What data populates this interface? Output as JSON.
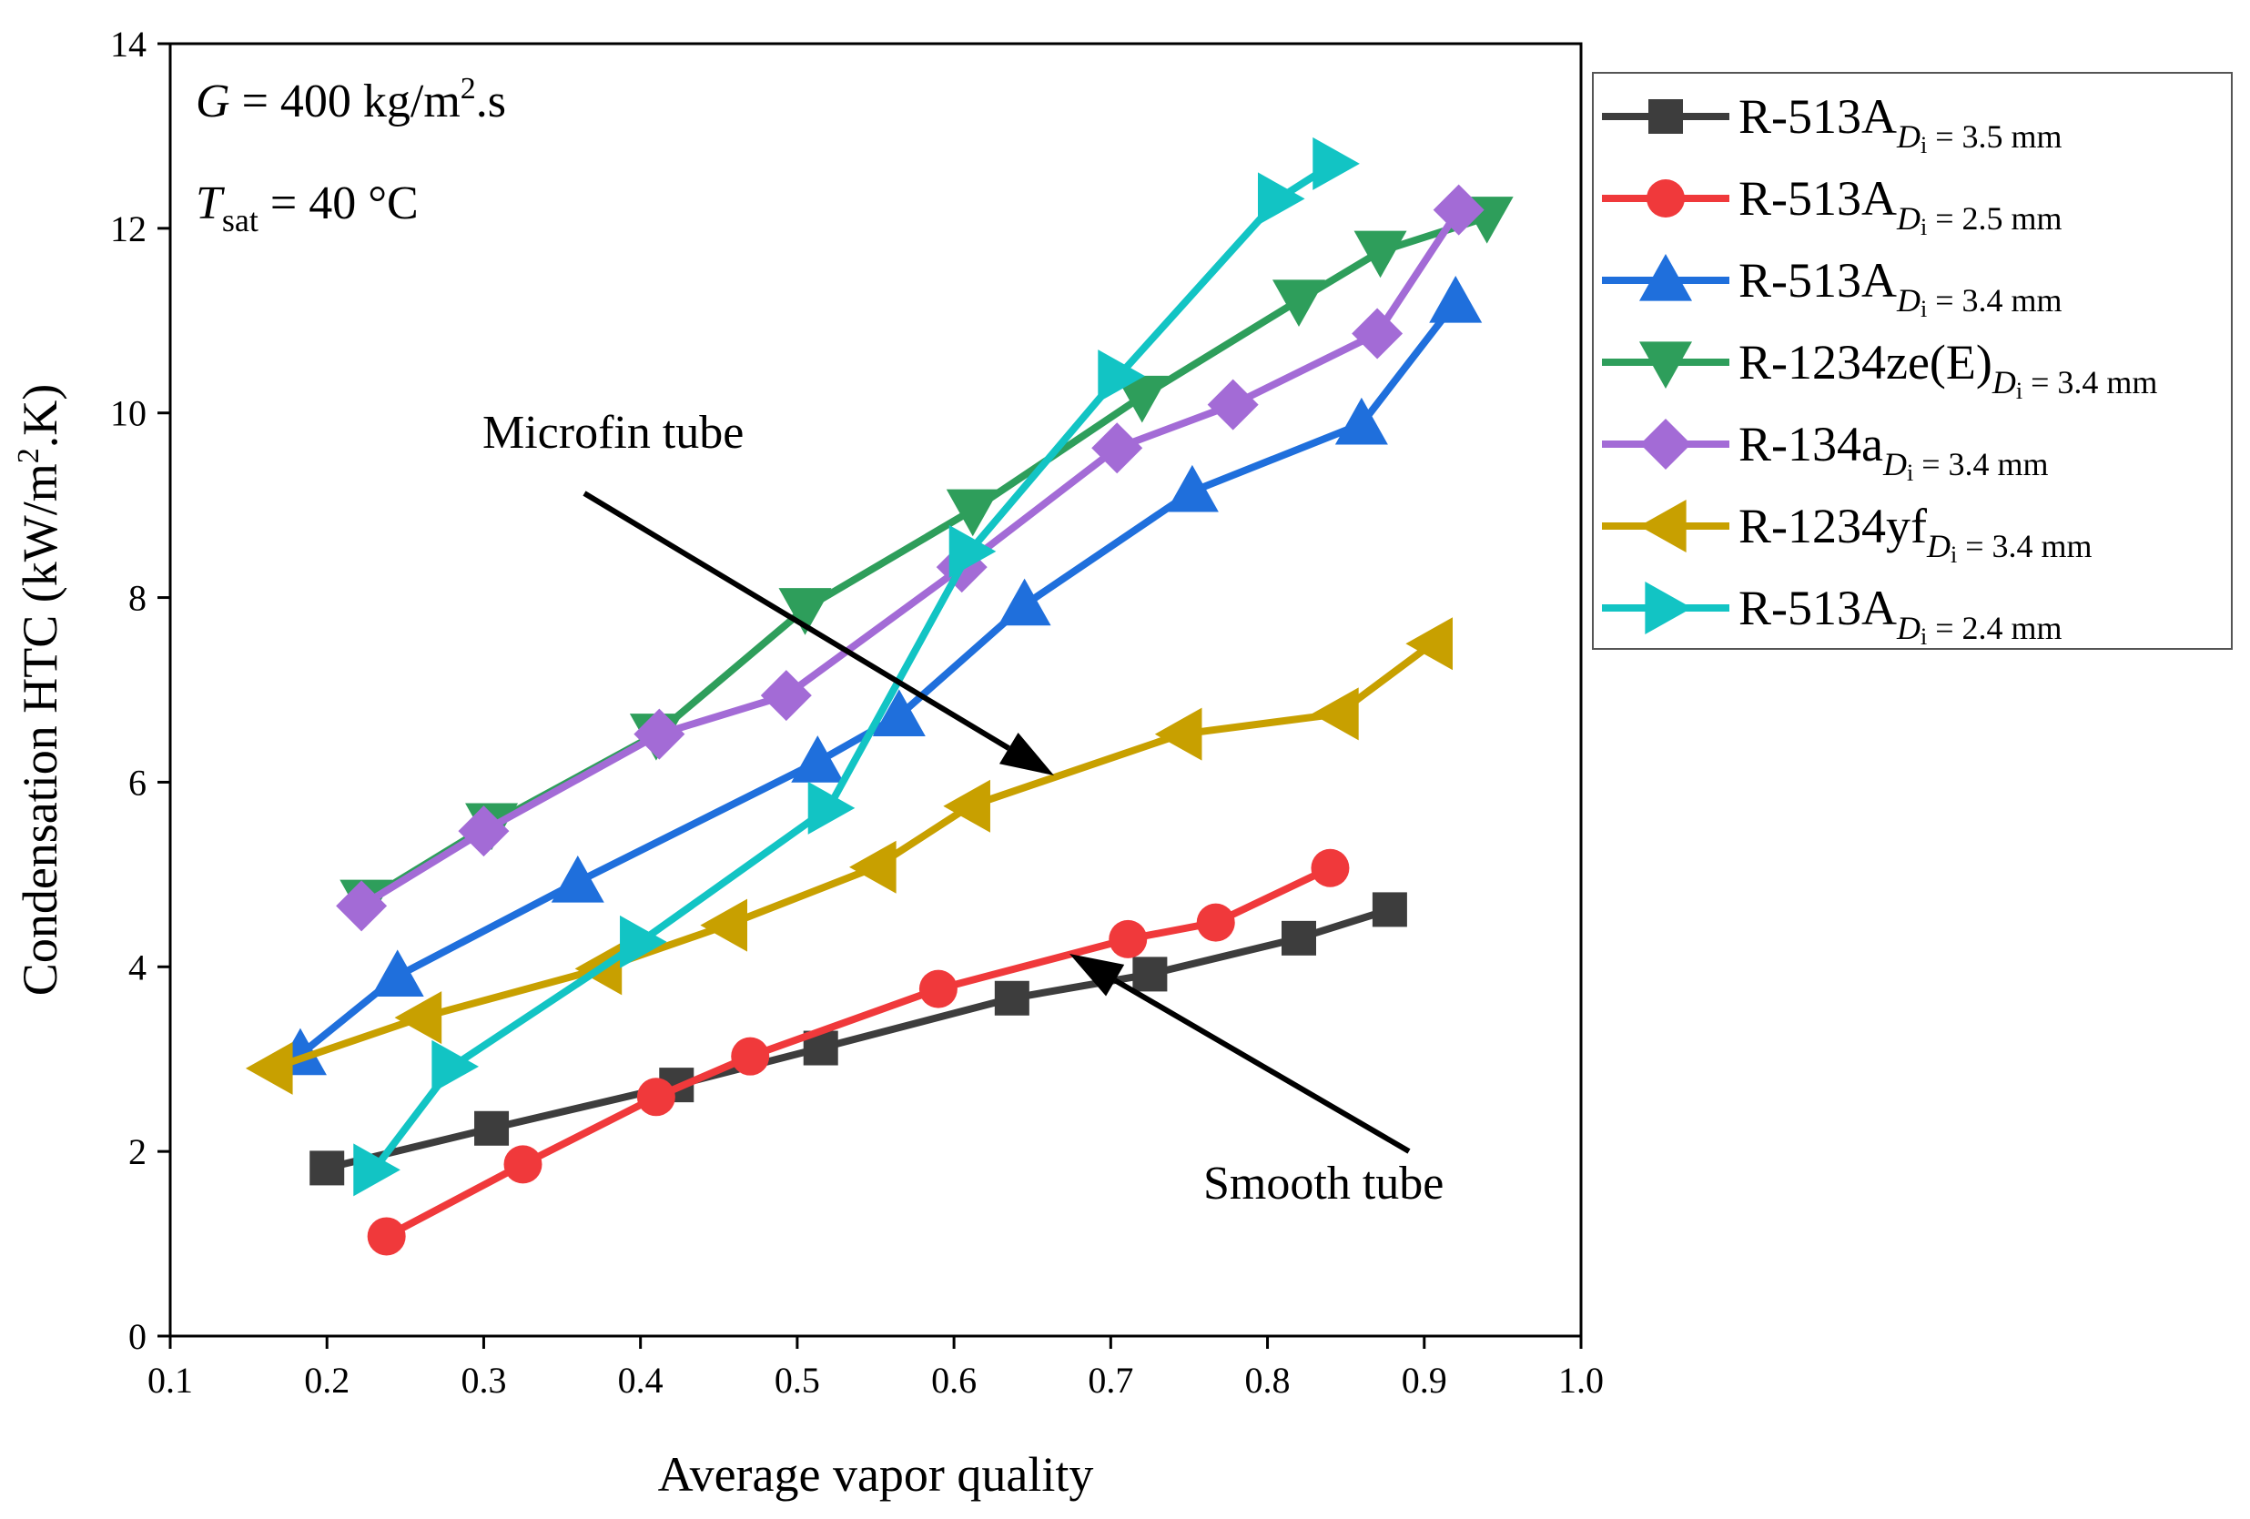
{
  "chart_data": {
    "type": "line",
    "xlabel": "Average vapor quality",
    "ylabel": "Condensation HTC (kW/m².K)",
    "ylabel_parts": {
      "main": "Condensation HTC (kW/m",
      "sup": "2",
      "end": ".K)"
    },
    "xlim": [
      0.1,
      1.0
    ],
    "ylim": [
      0,
      14
    ],
    "xticks": [
      "0.1",
      "0.2",
      "0.3",
      "0.4",
      "0.5",
      "0.6",
      "0.7",
      "0.8",
      "0.9",
      "1.0"
    ],
    "yticks": [
      "0",
      "2",
      "4",
      "6",
      "8",
      "10",
      "12",
      "14"
    ],
    "grid": false,
    "legend_position": "outside-right-top",
    "conditions": {
      "g_var": "G",
      "g_value": " = 400 kg/m",
      "g_sup": "2",
      "g_end": ".s",
      "t_var": "T",
      "t_sub": "sat",
      "t_value": " = 40 °C"
    },
    "annotations": [
      {
        "id": "microfin",
        "text": "Microfin tube"
      },
      {
        "id": "smooth",
        "text": "Smooth tube"
      }
    ],
    "series": [
      {
        "name": "R-513A",
        "sub_var": "D",
        "sub_idx": "i",
        "sub_text": " = 3.5 mm",
        "color": "#3d3d3d",
        "marker": "square",
        "x": [
          0.2,
          0.305,
          0.423,
          0.515,
          0.637,
          0.725,
          0.82,
          0.878
        ],
        "y": [
          1.82,
          2.25,
          2.72,
          3.12,
          3.66,
          3.92,
          4.31,
          4.62
        ]
      },
      {
        "name": "R-513A",
        "sub_var": "D",
        "sub_idx": "i",
        "sub_text": " = 2.5 mm",
        "color": "#f0393b",
        "marker": "circle",
        "x": [
          0.238,
          0.325,
          0.41,
          0.47,
          0.59,
          0.711,
          0.767,
          0.84
        ],
        "y": [
          1.08,
          1.86,
          2.59,
          3.03,
          3.76,
          4.3,
          4.48,
          5.07
        ]
      },
      {
        "name": "R-513A",
        "sub_var": "D",
        "sub_idx": "i",
        "sub_text": " = 3.4 mm",
        "color": "#1f6fdc",
        "marker": "triangle-up",
        "x": [
          0.183,
          0.245,
          0.36,
          0.513,
          0.565,
          0.645,
          0.752,
          0.86,
          0.92
        ],
        "y": [
          3.05,
          3.9,
          4.92,
          6.22,
          6.72,
          7.92,
          9.15,
          9.88,
          11.2
        ]
      },
      {
        "name": "R-1234ze(E)",
        "sub_var": "D",
        "sub_idx": "i",
        "sub_text": " = 3.4 mm",
        "color": "#2e9e5b",
        "marker": "triangle-down",
        "x": [
          0.225,
          0.305,
          0.41,
          0.505,
          0.612,
          0.72,
          0.82,
          0.872,
          0.94
        ],
        "y": [
          4.72,
          5.55,
          6.52,
          7.88,
          8.95,
          10.18,
          11.22,
          11.75,
          12.12
        ]
      },
      {
        "name": "R-134a",
        "sub_var": "D",
        "sub_idx": "i",
        "sub_text": " = 3.4 mm",
        "color": "#a36bd6",
        "marker": "diamond",
        "x": [
          0.222,
          0.3,
          0.412,
          0.493,
          0.605,
          0.704,
          0.778,
          0.87,
          0.922
        ],
        "y": [
          4.66,
          5.47,
          6.52,
          6.94,
          8.33,
          9.62,
          10.09,
          10.86,
          12.2
        ]
      },
      {
        "name": "R-1234yf",
        "sub_var": "D",
        "sub_idx": "i",
        "sub_text": " = 3.4 mm",
        "color": "#c8a000",
        "marker": "triangle-left",
        "x": [
          0.165,
          0.26,
          0.375,
          0.455,
          0.55,
          0.61,
          0.745,
          0.845,
          0.905
        ],
        "y": [
          2.9,
          3.45,
          3.98,
          4.45,
          5.08,
          5.74,
          6.52,
          6.74,
          7.5
        ]
      },
      {
        "name": "R-513A",
        "sub_var": "D",
        "sub_idx": "i",
        "sub_text": " = 2.4 mm",
        "color": "#12c4c4",
        "marker": "triangle-right",
        "x": [
          0.23,
          0.28,
          0.4,
          0.52,
          0.61,
          0.705,
          0.807,
          0.842
        ],
        "y": [
          1.8,
          2.92,
          4.27,
          5.72,
          8.5,
          10.4,
          12.32,
          12.7
        ]
      }
    ]
  }
}
